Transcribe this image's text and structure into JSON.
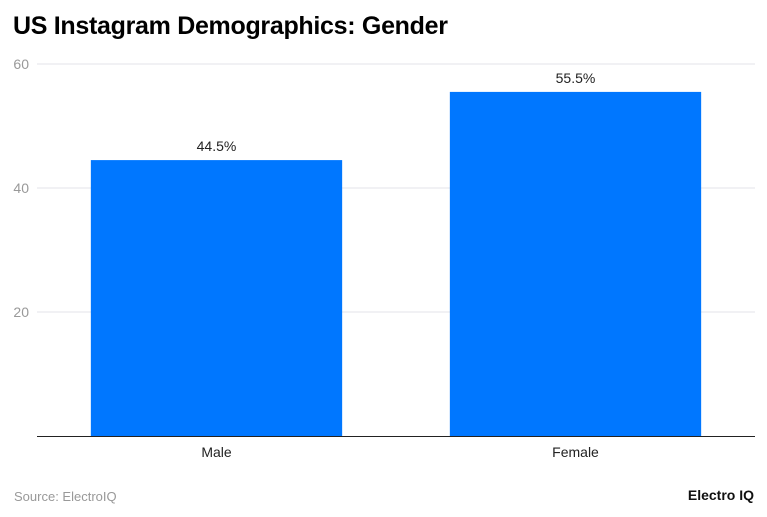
{
  "chart_data": {
    "type": "bar",
    "title": "US Instagram Demographics: Gender",
    "categories": [
      "Male",
      "Female"
    ],
    "values": [
      44.5,
      55.5
    ],
    "data_labels": [
      "44.5%",
      "55.5%"
    ],
    "xlabel": "",
    "ylabel": "",
    "ylim": [
      0,
      60
    ],
    "yticks": [
      20,
      40,
      60
    ],
    "grid": true,
    "bar_color": "#0077ff",
    "source": "Source: ElectroIQ"
  },
  "brand": "Electro IQ"
}
